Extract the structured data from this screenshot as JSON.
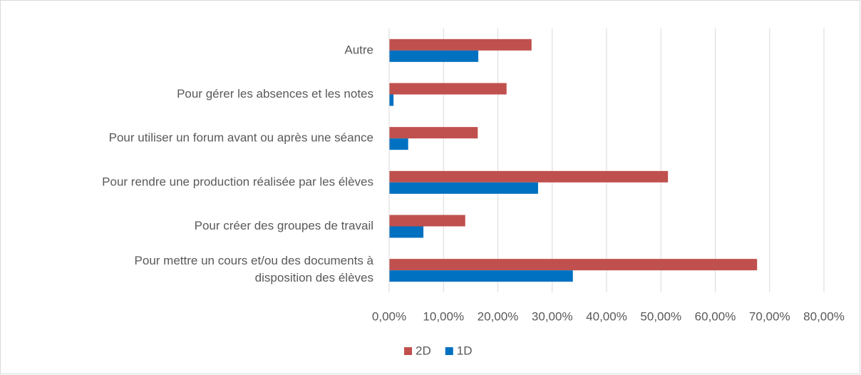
{
  "chart_data": {
    "type": "hbar",
    "categories": [
      "Autre",
      "Pour gérer les absences et les notes",
      "Pour utiliser un forum avant ou après une séance",
      "Pour rendre une production réalisée par les élèves",
      "Pour créer des groupes de travail",
      "Pour mettre un cours et/ou des documents à\ndisposition des élèves"
    ],
    "series": [
      {
        "name": "2D",
        "color": "#c0504d",
        "values": [
          26.2,
          21.6,
          16.3,
          51.3,
          14.0,
          67.7
        ]
      },
      {
        "name": "1D",
        "color": "#0070c0",
        "values": [
          16.4,
          0.8,
          3.5,
          27.4,
          6.3,
          33.8
        ]
      }
    ],
    "xlim": [
      0,
      80
    ],
    "xticks": [
      {
        "value": 0,
        "label": "0,00%"
      },
      {
        "value": 10,
        "label": "10,00%"
      },
      {
        "value": 20,
        "label": "20,00%"
      },
      {
        "value": 30,
        "label": "30,00%"
      },
      {
        "value": 40,
        "label": "40,00%"
      },
      {
        "value": 50,
        "label": "50,00%"
      },
      {
        "value": 60,
        "label": "60,00%"
      },
      {
        "value": 70,
        "label": "70,00%"
      },
      {
        "value": 80,
        "label": "80,00%"
      }
    ],
    "grid": true,
    "legend": "bottom"
  }
}
